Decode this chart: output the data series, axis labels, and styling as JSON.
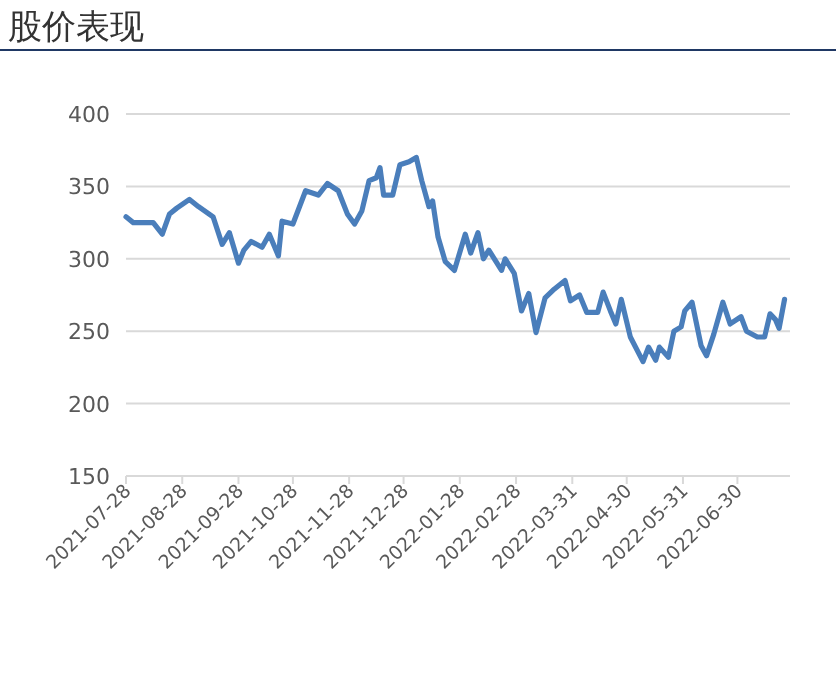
{
  "chart_data": {
    "type": "line",
    "title": "股价表现",
    "x": [
      "2021-07-28",
      "2021-08-01",
      "2021-08-05",
      "2021-08-12",
      "2021-08-17",
      "2021-08-21",
      "2021-08-25",
      "2021-09-01",
      "2021-09-06",
      "2021-09-14",
      "2021-09-19",
      "2021-09-23",
      "2021-09-28",
      "2021-10-01",
      "2021-10-05",
      "2021-10-11",
      "2021-10-15",
      "2021-10-20",
      "2021-10-22",
      "2021-10-28",
      "2021-11-04",
      "2021-11-11",
      "2021-11-16",
      "2021-11-22",
      "2021-11-27",
      "2021-12-01",
      "2021-12-05",
      "2021-12-09",
      "2021-12-13",
      "2021-12-15",
      "2021-12-17",
      "2021-12-22",
      "2021-12-26",
      "2021-12-31",
      "2022-01-04",
      "2022-01-07",
      "2022-01-11",
      "2022-01-13",
      "2022-01-16",
      "2022-01-20",
      "2022-01-25",
      "2022-01-31",
      "2022-02-03",
      "2022-02-07",
      "2022-02-10",
      "2022-02-13",
      "2022-02-20",
      "2022-02-22",
      "2022-02-27",
      "2022-03-03",
      "2022-03-07",
      "2022-03-11",
      "2022-03-16",
      "2022-03-21",
      "2022-03-27",
      "2022-03-30",
      "2022-04-04",
      "2022-04-08",
      "2022-04-14",
      "2022-04-17",
      "2022-04-21",
      "2022-04-24",
      "2022-04-27",
      "2022-05-02",
      "2022-05-09",
      "2022-05-12",
      "2022-05-16",
      "2022-05-18",
      "2022-05-23",
      "2022-05-26",
      "2022-05-30",
      "2022-06-01",
      "2022-06-05",
      "2022-06-10",
      "2022-06-13",
      "2022-06-17",
      "2022-06-22",
      "2022-06-26",
      "2022-07-02",
      "2022-07-05",
      "2022-07-11",
      "2022-07-15",
      "2022-07-18",
      "2022-07-21",
      "2022-07-23",
      "2022-07-26"
    ],
    "series": [
      {
        "color": "#4a7ebb",
        "values": [
          329,
          325,
          325,
          325,
          317,
          331,
          335,
          341,
          336,
          329,
          310,
          318,
          297,
          306,
          312,
          308,
          317,
          302,
          326,
          324,
          347,
          344,
          352,
          347,
          331,
          324,
          333,
          354,
          356,
          363,
          344,
          344,
          365,
          367,
          370,
          354,
          336,
          340,
          315,
          298,
          292,
          317,
          304,
          318,
          300,
          306,
          292,
          300,
          290,
          264,
          276,
          249,
          273,
          279,
          285,
          271,
          275,
          263,
          263,
          277,
          264,
          255,
          272,
          246,
          229,
          239,
          230,
          239,
          232,
          250,
          253,
          264,
          270,
          240,
          233,
          248,
          270,
          255,
          260,
          250,
          246,
          246,
          262,
          258,
          252,
          272
        ]
      }
    ],
    "xlim": [
      "2021-07-28",
      "2022-07-29"
    ],
    "xticks": [
      "2021-07-28",
      "2021-08-28",
      "2021-09-28",
      "2021-10-28",
      "2021-11-28",
      "2021-12-28",
      "2022-01-28",
      "2022-02-28",
      "2022-03-31",
      "2022-04-30",
      "2022-05-31",
      "2022-06-30"
    ],
    "ylim": [
      150,
      400
    ],
    "yticks": [
      150,
      200,
      250,
      300,
      350,
      400
    ],
    "grid": "y",
    "marker": "none",
    "line_style": "solid"
  }
}
